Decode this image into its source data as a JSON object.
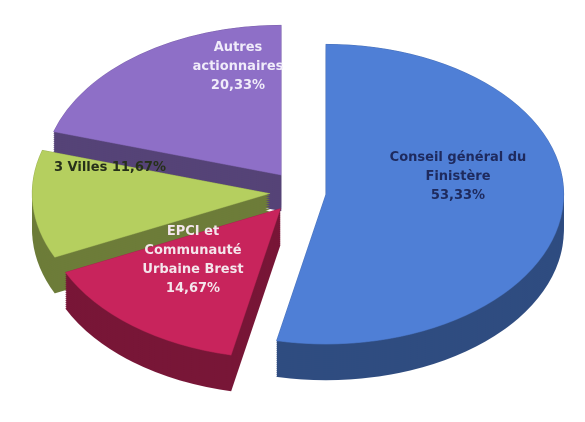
{
  "chart_data": {
    "type": "pie3d",
    "categories": [
      "Conseil général du Finistère",
      "EPCI et Communauté Urbaine Brest",
      "3 Villes",
      "Autres actionnaires"
    ],
    "values": [
      53.33,
      14.67,
      11.67,
      20.33
    ],
    "value_labels": [
      "53,33%",
      "14,67%",
      "11,67%",
      "20,33%"
    ],
    "colors": [
      "#4f7fd6",
      "#c8245c",
      "#b5cf5f",
      "#8e6fc7"
    ],
    "exploded": true
  }
}
